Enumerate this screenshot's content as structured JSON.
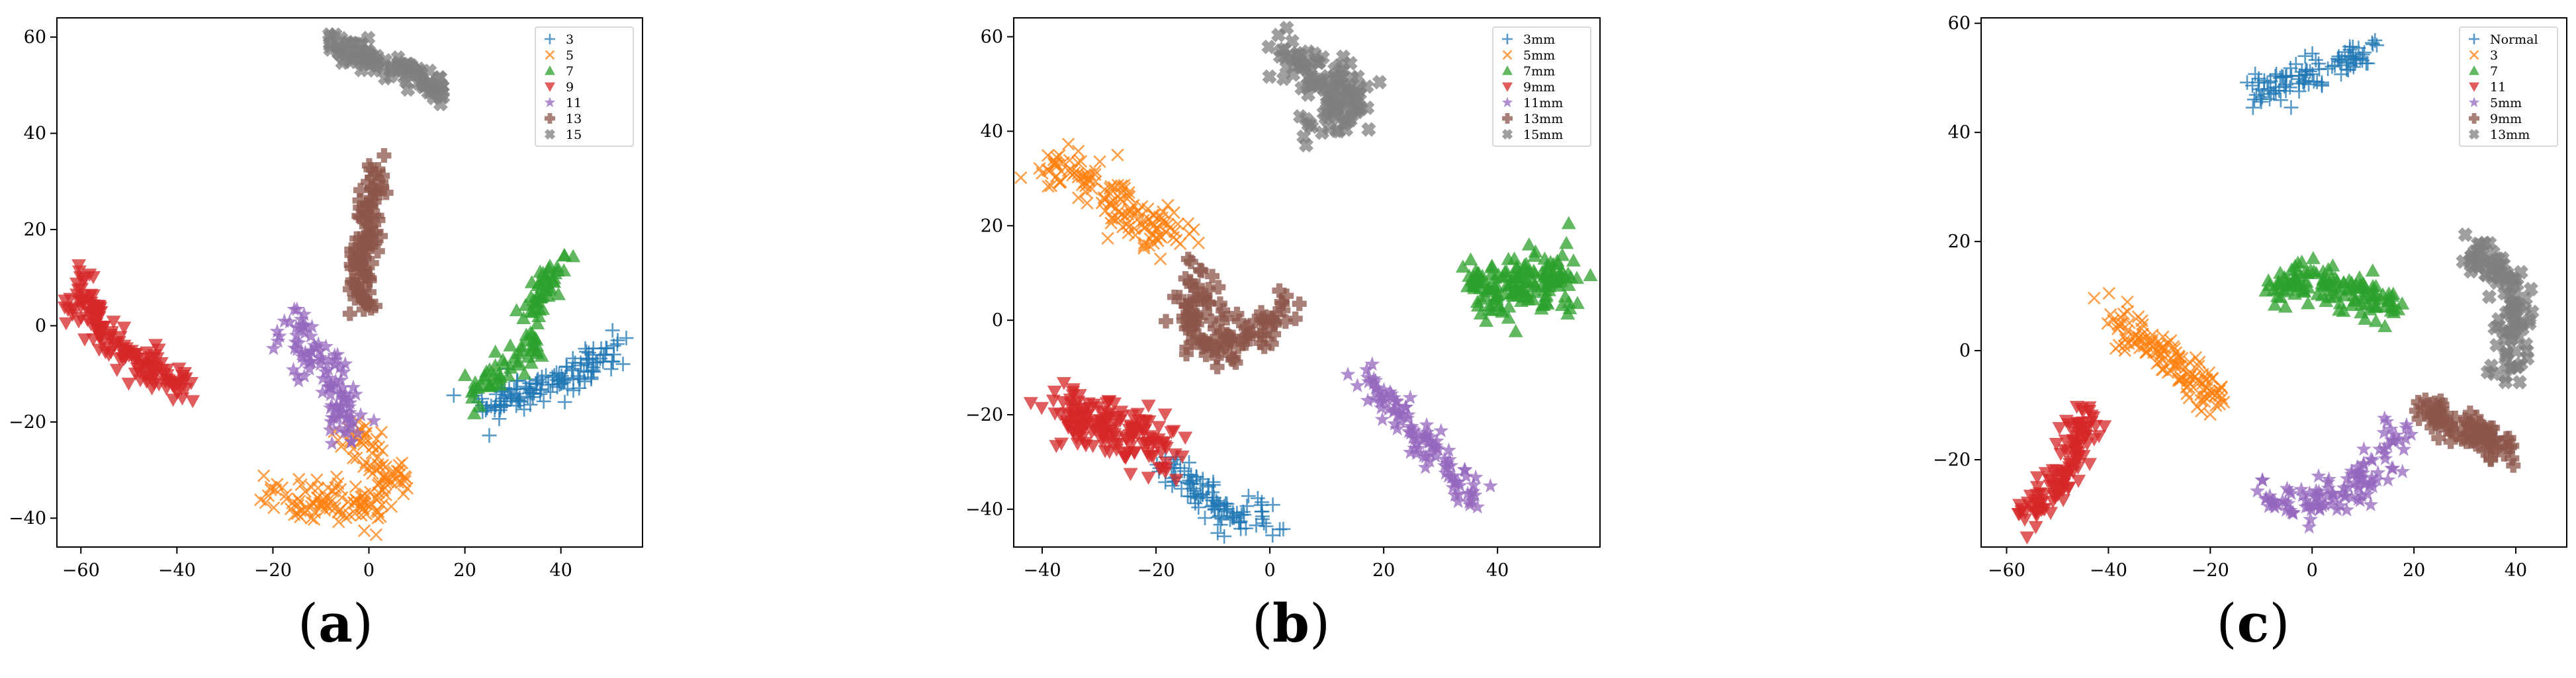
{
  "captions": [
    "a",
    "b",
    "c"
  ],
  "chart_data": [
    {
      "type": "scatter",
      "title": "",
      "xlabel": "",
      "ylabel": "",
      "xlim": [
        -65,
        57
      ],
      "ylim": [
        -46,
        64
      ],
      "xticks": [
        -60,
        -40,
        -20,
        0,
        20,
        40
      ],
      "yticks": [
        -40,
        -20,
        0,
        20,
        40,
        60
      ],
      "grid": false,
      "legend_position": "top-right",
      "series": [
        {
          "name": "3",
          "color": "#1f77b4",
          "marker": "plus",
          "path": [
            [
              22,
              -16
            ],
            [
              30,
              -15
            ],
            [
              38,
              -12
            ],
            [
              45,
              -9
            ],
            [
              51,
              -4
            ]
          ],
          "spread": [
            1.8,
            1.8
          ],
          "count": 140
        },
        {
          "name": "5",
          "color": "#ff7f0e",
          "marker": "x",
          "path": [
            [
              -21,
              -35
            ],
            [
              -10,
              -37
            ],
            [
              2,
              -37
            ],
            [
              6,
              -34
            ],
            [
              1,
              -28
            ],
            [
              -4,
              -22
            ]
          ],
          "spread": [
            2.0,
            2.0
          ],
          "count": 160
        },
        {
          "name": "7",
          "color": "#2ca02c",
          "marker": "triangle-up",
          "path": [
            [
              42,
              15
            ],
            [
              37,
              9
            ],
            [
              34,
              2
            ],
            [
              33,
              -5
            ],
            [
              29,
              -9
            ],
            [
              22,
              -14
            ]
          ],
          "spread": [
            1.6,
            1.6
          ],
          "count": 100
        },
        {
          "name": "9",
          "color": "#d62728",
          "marker": "triangle-down",
          "path": [
            [
              -60,
              10
            ],
            [
              -58,
              2
            ],
            [
              -52,
              -5
            ],
            [
              -45,
              -10
            ],
            [
              -38,
              -14
            ]
          ],
          "spread": [
            1.8,
            1.8
          ],
          "count": 160
        },
        {
          "name": "11",
          "color": "#9467bd",
          "marker": "star",
          "path": [
            [
              -17,
              1
            ],
            [
              -12,
              -6
            ],
            [
              -8,
              -12
            ],
            [
              -5,
              -18
            ],
            [
              -4,
              -24
            ]
          ],
          "spread": [
            2.0,
            2.0
          ],
          "count": 110
        },
        {
          "name": "13",
          "color": "#8c564b",
          "marker": "plus-filled",
          "path": [
            [
              2,
              33
            ],
            [
              0,
              22
            ],
            [
              -2,
              12
            ],
            [
              0,
              3
            ]
          ],
          "spread": [
            1.5,
            1.8
          ],
          "count": 100
        },
        {
          "name": "15",
          "color": "#7f7f7f",
          "marker": "x-filled",
          "path": [
            [
              -8,
              59
            ],
            [
              0,
              56
            ],
            [
              8,
              53
            ],
            [
              16,
              48
            ]
          ],
          "spread": [
            1.5,
            1.5
          ],
          "count": 110
        }
      ]
    },
    {
      "type": "scatter",
      "title": "",
      "xlabel": "",
      "ylabel": "",
      "xlim": [
        -45,
        58
      ],
      "ylim": [
        -48,
        64
      ],
      "xticks": [
        -40,
        -20,
        0,
        20,
        40
      ],
      "yticks": [
        -40,
        -20,
        0,
        20,
        40,
        60
      ],
      "grid": false,
      "legend_position": "top-right",
      "series": [
        {
          "name": "3mm",
          "color": "#1f77b4",
          "marker": "plus",
          "path": [
            [
              -18,
              -30
            ],
            [
              -13,
              -36
            ],
            [
              -8,
              -41
            ],
            [
              0,
              -42
            ]
          ],
          "spread": [
            2.0,
            2.0
          ],
          "count": 100
        },
        {
          "name": "5mm",
          "color": "#ff7f0e",
          "marker": "x",
          "path": [
            [
              -40,
              33
            ],
            [
              -32,
              30
            ],
            [
              -25,
              23
            ],
            [
              -16,
              16
            ]
          ],
          "spread": [
            2.0,
            2.0
          ],
          "count": 140
        },
        {
          "name": "7mm",
          "color": "#2ca02c",
          "marker": "triangle-up",
          "path": [
            [
              36,
              6
            ],
            [
              42,
              8
            ],
            [
              48,
              9
            ],
            [
              53,
              8
            ]
          ],
          "spread": [
            2.2,
            3.2
          ],
          "count": 160
        },
        {
          "name": "9mm",
          "color": "#d62728",
          "marker": "triangle-down",
          "path": [
            [
              -37,
              -19
            ],
            [
              -30,
              -23
            ],
            [
              -24,
              -24
            ],
            [
              -18,
              -28
            ]
          ],
          "spread": [
            2.5,
            2.8
          ],
          "count": 170
        },
        {
          "name": "11mm",
          "color": "#9467bd",
          "marker": "star",
          "path": [
            [
              17,
              -12
            ],
            [
              24,
              -22
            ],
            [
              31,
              -30
            ],
            [
              36,
              -38
            ]
          ],
          "spread": [
            1.6,
            1.8
          ],
          "count": 110
        },
        {
          "name": "13mm",
          "color": "#8c564b",
          "marker": "plus-filled",
          "path": [
            [
              -13,
              10
            ],
            [
              -14,
              0
            ],
            [
              -10,
              -6
            ],
            [
              -3,
              -1
            ],
            [
              2,
              3
            ]
          ],
          "spread": [
            2.0,
            2.4
          ],
          "count": 120
        },
        {
          "name": "15mm",
          "color": "#7f7f7f",
          "marker": "x-filled",
          "path": [
            [
              2,
              57
            ],
            [
              9,
              52
            ],
            [
              14,
              48
            ],
            [
              10,
              41
            ]
          ],
          "spread": [
            2.5,
            2.5
          ],
          "count": 130
        }
      ]
    },
    {
      "type": "scatter",
      "title": "",
      "xlabel": "",
      "ylabel": "",
      "xlim": [
        -65,
        50
      ],
      "ylim": [
        -36,
        61
      ],
      "xticks": [
        -60,
        -40,
        -20,
        0,
        20,
        40
      ],
      "yticks": [
        -20,
        0,
        20,
        40,
        60
      ],
      "grid": false,
      "legend_position": "top-right",
      "series": [
        {
          "name": "Normal",
          "color": "#1f77b4",
          "marker": "plus",
          "path": [
            [
              -12,
              46
            ],
            [
              -5,
              50
            ],
            [
              3,
              52
            ],
            [
              13,
              55
            ]
          ],
          "spread": [
            1.5,
            1.5
          ],
          "count": 100
        },
        {
          "name": "3",
          "color": "#ff7f0e",
          "marker": "x",
          "path": [
            [
              -42,
              8
            ],
            [
              -36,
              4
            ],
            [
              -29,
              -1
            ],
            [
              -24,
              -5
            ],
            [
              -18,
              -10
            ]
          ],
          "spread": [
            1.6,
            1.6
          ],
          "count": 130
        },
        {
          "name": "7",
          "color": "#2ca02c",
          "marker": "triangle-up",
          "path": [
            [
              -8,
              11
            ],
            [
              0,
              13
            ],
            [
              8,
              11
            ],
            [
              16,
              8
            ]
          ],
          "spread": [
            2.0,
            1.8
          ],
          "count": 130
        },
        {
          "name": "11",
          "color": "#d62728",
          "marker": "triangle-down",
          "path": [
            [
              -44,
              -11
            ],
            [
              -47,
              -20
            ],
            [
              -51,
              -27
            ],
            [
              -57,
              -30
            ]
          ],
          "spread": [
            1.6,
            1.6
          ],
          "count": 130
        },
        {
          "name": "5mm",
          "color": "#9467bd",
          "marker": "star",
          "path": [
            [
              -10,
              -26
            ],
            [
              -2,
              -29
            ],
            [
              6,
              -27
            ],
            [
              12,
              -22
            ],
            [
              17,
              -14
            ]
          ],
          "spread": [
            2.0,
            1.8
          ],
          "count": 120
        },
        {
          "name": "9mm",
          "color": "#8c564b",
          "marker": "plus-filled",
          "path": [
            [
              22,
              -11
            ],
            [
              28,
              -14
            ],
            [
              34,
              -15
            ],
            [
              38,
              -20
            ]
          ],
          "spread": [
            1.6,
            1.6
          ],
          "count": 90
        },
        {
          "name": "13mm",
          "color": "#7f7f7f",
          "marker": "x-filled",
          "path": [
            [
              30,
              18
            ],
            [
              37,
              15
            ],
            [
              40,
              8
            ],
            [
              40,
              0
            ],
            [
              37,
              -5
            ]
          ],
          "spread": [
            1.6,
            1.6
          ],
          "count": 110
        }
      ]
    }
  ]
}
